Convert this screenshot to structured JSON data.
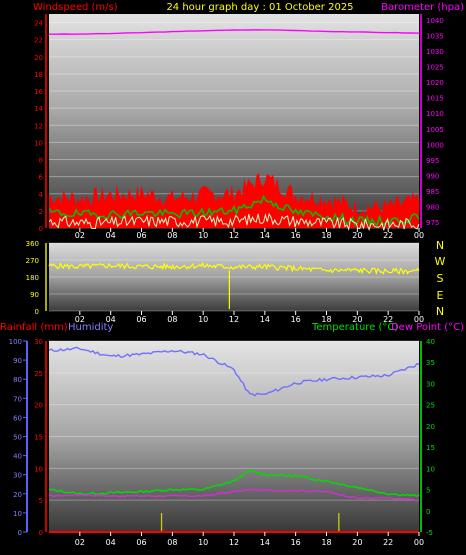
{
  "header": {
    "title": "24 hour graph day : 01 October 2025",
    "left_label": "Windspeed (m/s)",
    "right_label": "Barometer (hpa)"
  },
  "direction": {
    "compass": [
      "N",
      "W",
      "S",
      "E",
      "N"
    ]
  },
  "lower": {
    "rain_label": "Rainfall (mm)",
    "humidity_label": "Humidity",
    "temp_label": "Temperature (°C)",
    "dew_label": "Dew Point (°C)"
  },
  "colors": {
    "wind": "#ff0000",
    "gust_avg": "#00c000",
    "wind_low": "#c8ffc8",
    "barometer": "#ff00ff",
    "direction": "#ffff00",
    "rain": "#ff0000",
    "humidity": "#7070ff",
    "temperature": "#00dd00",
    "dewpoint": "#cc33cc",
    "rain_marks": "#cccc00"
  },
  "chart_data": [
    {
      "type": "line",
      "title": "24 hour graph day : 01 October 2025",
      "x_ticks": [
        "02",
        "04",
        "06",
        "08",
        "10",
        "12",
        "14",
        "16",
        "18",
        "20",
        "22",
        "00"
      ],
      "y_left_label": "Windspeed (m/s)",
      "y_left_ticks": [
        0,
        2,
        4,
        6,
        8,
        10,
        12,
        14,
        16,
        18,
        20,
        22,
        24
      ],
      "y_left_lim": [
        0,
        25
      ],
      "y_right_label": "Barometer (hpa)",
      "y_right_ticks": [
        975,
        980,
        985,
        990,
        995,
        1000,
        1005,
        1010,
        1015,
        1020,
        1025,
        1030,
        1035,
        1040
      ],
      "y_right_lim": [
        973,
        1042
      ],
      "x_hours": [
        0,
        2,
        4,
        6,
        8,
        10,
        12,
        14,
        16,
        18,
        20,
        22,
        24
      ],
      "series": [
        {
          "key": "barometer",
          "axis": "right",
          "values": [
            1035.5,
            1035.5,
            1035.7,
            1036.0,
            1036.3,
            1036.6,
            1036.8,
            1036.9,
            1036.7,
            1036.4,
            1036.2,
            1036.0,
            1035.8
          ]
        },
        {
          "key": "gust",
          "axis": "left",
          "values": [
            3.2,
            3.0,
            3.4,
            3.6,
            3.0,
            3.4,
            3.6,
            5.5,
            3.4,
            3.0,
            2.0,
            2.0,
            2.8
          ]
        },
        {
          "key": "wind_avg",
          "axis": "left",
          "values": [
            1.8,
            1.6,
            1.6,
            1.8,
            1.6,
            1.8,
            2.0,
            3.4,
            1.8,
            1.4,
            0.8,
            0.8,
            1.2
          ]
        },
        {
          "key": "wind_low",
          "axis": "left",
          "values": [
            0.8,
            0.6,
            0.6,
            0.8,
            0.8,
            0.8,
            0.8,
            1.2,
            0.8,
            0.6,
            0.4,
            0.4,
            0.6
          ]
        }
      ]
    },
    {
      "type": "line",
      "x_ticks": [
        "02",
        "04",
        "06",
        "08",
        "10",
        "12",
        "14",
        "16",
        "18",
        "20",
        "22",
        "00"
      ],
      "y_ticks": [
        0,
        90,
        180,
        270,
        360
      ],
      "y_lim": [
        0,
        360
      ],
      "x_hours": [
        0,
        2,
        4,
        6,
        8,
        10,
        12,
        14,
        16,
        18,
        20,
        22,
        24
      ],
      "series": [
        {
          "key": "direction",
          "values": [
            240,
            235,
            240,
            235,
            235,
            240,
            232,
            235,
            225,
            215,
            215,
            210,
            212
          ]
        }
      ],
      "spike": {
        "hour": 11.7,
        "min": 10,
        "max": 215
      }
    },
    {
      "type": "line",
      "x_ticks": [
        "02",
        "04",
        "06",
        "08",
        "10",
        "12",
        "14",
        "16",
        "18",
        "20",
        "22",
        "00"
      ],
      "y_humidity_ticks": [
        0,
        10,
        20,
        30,
        40,
        50,
        60,
        70,
        80,
        90,
        100
      ],
      "y_humidity_lim": [
        0,
        100
      ],
      "y_rain_label": "Rainfall (mm)",
      "y_rain_ticks": [
        0,
        5,
        10,
        15,
        20,
        25,
        30
      ],
      "y_rain_lim": [
        0,
        30
      ],
      "y_temp_label": "Temperature (°C)",
      "y_temp_ticks": [
        -5,
        0,
        5,
        10,
        15,
        20,
        25,
        30,
        35,
        40
      ],
      "y_temp_lim": [
        -5,
        40
      ],
      "x_hours": [
        0,
        2,
        4,
        6,
        8,
        10,
        12,
        13,
        14,
        16,
        18,
        20,
        22,
        24
      ],
      "series": [
        {
          "key": "humidity",
          "values": [
            95,
            96,
            92,
            93,
            95,
            93,
            85,
            72,
            72,
            78,
            80,
            81,
            82,
            88
          ]
        },
        {
          "key": "temperature",
          "values": [
            5.0,
            4.0,
            4.2,
            4.5,
            5.0,
            5.0,
            7.0,
            9.5,
            8.5,
            8.2,
            7.0,
            5.5,
            4.0,
            3.5
          ]
        },
        {
          "key": "dewpoint",
          "values": [
            3.5,
            3.8,
            3.5,
            3.5,
            3.5,
            3.5,
            4.5,
            5.0,
            4.8,
            4.8,
            4.5,
            3.0,
            3.0,
            2.5
          ]
        },
        {
          "key": "rainfall",
          "values": [
            0,
            0,
            0,
            0,
            0,
            0,
            0,
            0,
            0,
            0,
            0,
            0,
            0,
            0
          ]
        }
      ],
      "rain_marks_hours": [
        7.3,
        18.8
      ]
    }
  ]
}
